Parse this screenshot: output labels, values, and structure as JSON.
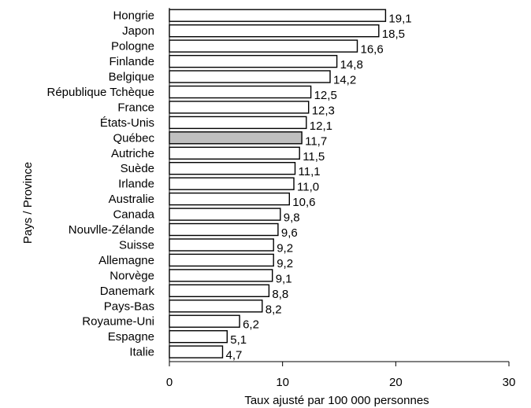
{
  "chart_data": {
    "type": "bar",
    "orientation": "horizontal",
    "categories": [
      "Hongrie",
      "Japon",
      "Pologne",
      "Finlande",
      "Belgique",
      "République Tchèque",
      "France",
      "États-Unis",
      "Québec",
      "Autriche",
      "Suède",
      "Irlande",
      "Australie",
      "Canada",
      "Nouvlle-Zélande",
      "Suisse",
      "Allemagne",
      "Norvège",
      "Danemark",
      "Pays-Bas",
      "Royaume-Uni",
      "Espagne",
      "Italie"
    ],
    "values": [
      19.1,
      18.5,
      16.6,
      14.8,
      14.2,
      12.5,
      12.3,
      12.1,
      11.7,
      11.5,
      11.1,
      11.0,
      10.6,
      9.8,
      9.6,
      9.2,
      9.2,
      9.1,
      8.8,
      8.2,
      6.2,
      5.1,
      4.7
    ],
    "value_labels": [
      "19,1",
      "18,5",
      "16,6",
      "14,8",
      "14,2",
      "12,5",
      "12,3",
      "12,1",
      "11,7",
      "11,5",
      "11,1",
      "11,0",
      "10,6",
      "9,8",
      "9,6",
      "9,2",
      "9,2",
      "9,1",
      "8,8",
      "8,2",
      "6,2",
      "5,1",
      "4,7"
    ],
    "highlight_category": "Québec",
    "xlabel": "Taux ajusté par 100 000 personnes",
    "ylabel": "Pays / Province",
    "xlim": [
      0,
      30
    ],
    "xticks": [
      0,
      10,
      20,
      30
    ],
    "xtick_labels": [
      "0",
      "10",
      "20",
      "30"
    ],
    "grid": false,
    "colors": {
      "bar_fill": "#ffffff",
      "highlight_fill": "#c0c0c0",
      "bar_stroke": "#000000"
    }
  }
}
